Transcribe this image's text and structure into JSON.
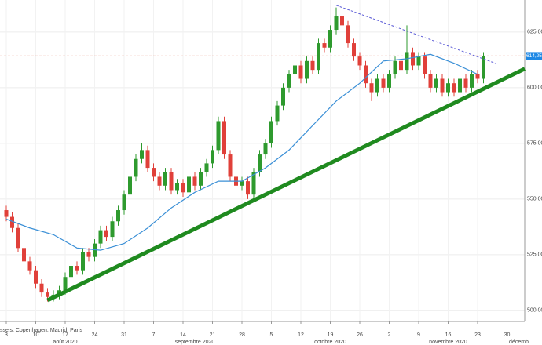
{
  "chart_data": {
    "type": "candlestick",
    "x": [
      "2020-08-03",
      "2020-08-04",
      "2020-08-05",
      "2020-08-06",
      "2020-08-07",
      "2020-08-10",
      "2020-08-11",
      "2020-08-12",
      "2020-08-13",
      "2020-08-14",
      "2020-08-17",
      "2020-08-18",
      "2020-08-19",
      "2020-08-20",
      "2020-08-21",
      "2020-08-24",
      "2020-08-25",
      "2020-08-26",
      "2020-08-27",
      "2020-08-28",
      "2020-08-31",
      "2020-09-01",
      "2020-09-02",
      "2020-09-03",
      "2020-09-04",
      "2020-09-07",
      "2020-09-08",
      "2020-09-09",
      "2020-09-10",
      "2020-09-11",
      "2020-09-14",
      "2020-09-15",
      "2020-09-16",
      "2020-09-17",
      "2020-09-18",
      "2020-09-21",
      "2020-09-22",
      "2020-09-23",
      "2020-09-24",
      "2020-09-25",
      "2020-09-28",
      "2020-09-29",
      "2020-09-30",
      "2020-10-01",
      "2020-10-02",
      "2020-10-05",
      "2020-10-06",
      "2020-10-07",
      "2020-10-08",
      "2020-10-09",
      "2020-10-12",
      "2020-10-13",
      "2020-10-14",
      "2020-10-15",
      "2020-10-16",
      "2020-10-19",
      "2020-10-20",
      "2020-10-21",
      "2020-10-22",
      "2020-10-23",
      "2020-10-26",
      "2020-10-27",
      "2020-10-28",
      "2020-10-29",
      "2020-10-30",
      "2020-11-02",
      "2020-11-03",
      "2020-11-04",
      "2020-11-05",
      "2020-11-06",
      "2020-11-09",
      "2020-11-10",
      "2020-11-11",
      "2020-11-12",
      "2020-11-13",
      "2020-11-16",
      "2020-11-17",
      "2020-11-18",
      "2020-11-19",
      "2020-11-20",
      "2020-11-23",
      "2020-11-24"
    ],
    "open": [
      545,
      542,
      537,
      528,
      522,
      518,
      512,
      508,
      506,
      507,
      509,
      515,
      520,
      518,
      526,
      524,
      530,
      536,
      533,
      540,
      545,
      552,
      560,
      568,
      572,
      564,
      560,
      556,
      562,
      554,
      557,
      553,
      560,
      556,
      562,
      566,
      572,
      585,
      570,
      560,
      556,
      558,
      552,
      562,
      570,
      575,
      585,
      592,
      600,
      606,
      610,
      604,
      612,
      608,
      620,
      618,
      626,
      632,
      628,
      620,
      614,
      610,
      602,
      598,
      604,
      600,
      606,
      612,
      608,
      616,
      610,
      614,
      606,
      600,
      604,
      598,
      602,
      598,
      604,
      600,
      606,
      604
    ],
    "high": [
      547,
      544,
      539,
      530,
      524,
      520,
      514,
      510,
      509,
      511,
      517,
      522,
      522,
      528,
      528,
      532,
      538,
      538,
      542,
      547,
      554,
      562,
      570,
      575,
      574,
      566,
      562,
      564,
      564,
      559,
      559,
      562,
      562,
      564,
      568,
      574,
      587,
      587,
      572,
      562,
      560,
      560,
      564,
      572,
      577,
      587,
      594,
      602,
      608,
      612,
      612,
      614,
      614,
      622,
      622,
      628,
      636,
      634,
      630,
      622,
      616,
      612,
      604,
      606,
      606,
      608,
      614,
      614,
      628,
      618,
      616,
      616,
      608,
      606,
      606,
      604,
      604,
      606,
      606,
      608,
      608,
      616
    ],
    "low": [
      540,
      535,
      526,
      520,
      516,
      510,
      506,
      504,
      504,
      505,
      507,
      513,
      516,
      516,
      522,
      522,
      528,
      531,
      531,
      538,
      543,
      550,
      558,
      566,
      562,
      558,
      554,
      554,
      552,
      552,
      551,
      551,
      554,
      554,
      560,
      564,
      570,
      568,
      558,
      554,
      554,
      550,
      550,
      560,
      568,
      573,
      583,
      590,
      598,
      604,
      602,
      602,
      606,
      606,
      616,
      616,
      624,
      626,
      618,
      612,
      608,
      600,
      594,
      596,
      598,
      598,
      604,
      606,
      606,
      608,
      608,
      604,
      598,
      598,
      596,
      596,
      596,
      596,
      598,
      598,
      602,
      602
    ],
    "close": [
      542,
      537,
      528,
      522,
      518,
      512,
      508,
      506,
      507,
      509,
      515,
      520,
      518,
      526,
      524,
      530,
      536,
      533,
      540,
      545,
      552,
      560,
      568,
      572,
      564,
      560,
      556,
      562,
      554,
      557,
      553,
      560,
      556,
      562,
      566,
      572,
      585,
      570,
      560,
      556,
      558,
      552,
      562,
      570,
      575,
      585,
      592,
      600,
      606,
      610,
      604,
      612,
      608,
      620,
      618,
      626,
      632,
      628,
      620,
      614,
      610,
      602,
      598,
      604,
      600,
      606,
      612,
      608,
      616,
      610,
      614,
      606,
      600,
      604,
      598,
      602,
      598,
      604,
      600,
      606,
      604,
      614.25
    ],
    "up_color": "#2e9a2e",
    "down_color": "#e0403a",
    "moving_average": {
      "color": "#3a8fd6",
      "x": [
        "2020-08-03",
        "2020-08-07",
        "2020-08-13",
        "2020-08-19",
        "2020-08-25",
        "2020-08-31",
        "2020-09-04",
        "2020-09-10",
        "2020-09-16",
        "2020-09-22",
        "2020-09-28",
        "2020-10-02",
        "2020-10-08",
        "2020-10-14",
        "2020-10-20",
        "2020-10-26",
        "2020-10-30",
        "2020-11-05",
        "2020-11-11",
        "2020-11-17",
        "2020-11-23"
      ],
      "values": [
        541,
        537,
        534,
        528,
        527,
        530,
        537,
        546,
        553,
        558,
        558,
        564,
        572,
        583,
        594,
        602,
        612,
        613,
        615,
        611,
        606
      ]
    },
    "trendlines": [
      {
        "color": "#1f8a1f",
        "style": "solid",
        "x": [
          "2020-08-12",
          "2020-12-03"
        ],
        "values": [
          504.5,
          608.5
        ]
      },
      {
        "color": "#5a5ad6",
        "style": "dashed",
        "x": [
          "2020-10-20",
          "2020-11-26"
        ],
        "values": [
          637,
          611
        ]
      }
    ],
    "price_line": {
      "value": 614.25,
      "label": "614,25",
      "color": "#e07a5f",
      "label_color": "#1e88e5"
    },
    "ylim": [
      495,
      639.4
    ],
    "yticks": [
      {
        "value": 500,
        "label": "500,00"
      },
      {
        "value": 525,
        "label": "525,00"
      },
      {
        "value": 550,
        "label": "550,00"
      },
      {
        "value": 575,
        "label": "575,00"
      },
      {
        "value": 600,
        "label": "600,00"
      },
      {
        "value": 625,
        "label": "625,00"
      }
    ],
    "xticks": [
      {
        "value": "2020-08-03",
        "label": "3"
      },
      {
        "value": "2020-08-10",
        "label": "10"
      },
      {
        "value": "2020-08-17",
        "label": "17"
      },
      {
        "value": "2020-08-24",
        "label": "24"
      },
      {
        "value": "2020-08-31",
        "label": "31"
      },
      {
        "value": "2020-09-07",
        "label": "7"
      },
      {
        "value": "2020-09-14",
        "label": "14"
      },
      {
        "value": "2020-09-21",
        "label": "21"
      },
      {
        "value": "2020-09-28",
        "label": "28"
      },
      {
        "value": "2020-10-05",
        "label": "5"
      },
      {
        "value": "2020-10-12",
        "label": "12"
      },
      {
        "value": "2020-10-19",
        "label": "19"
      },
      {
        "value": "2020-10-26",
        "label": "26"
      },
      {
        "value": "2020-11-02",
        "label": "2"
      },
      {
        "value": "2020-11-09",
        "label": "9"
      },
      {
        "value": "2020-11-16",
        "label": "16"
      },
      {
        "value": "2020-11-23",
        "label": "23"
      },
      {
        "value": "2020-11-30",
        "label": "30"
      }
    ],
    "month_labels": [
      {
        "value": "2020-08-17",
        "label": "août 2020"
      },
      {
        "value": "2020-09-16",
        "label": "septembre 2020"
      },
      {
        "value": "2020-10-19",
        "label": "octobre 2020"
      },
      {
        "value": "2020-11-16",
        "label": "novembre 2020"
      },
      {
        "value": "2020-12-02",
        "label": "décemb"
      }
    ],
    "source": "ssels, Copenhagen, Madrid, Paris",
    "grid": true
  }
}
